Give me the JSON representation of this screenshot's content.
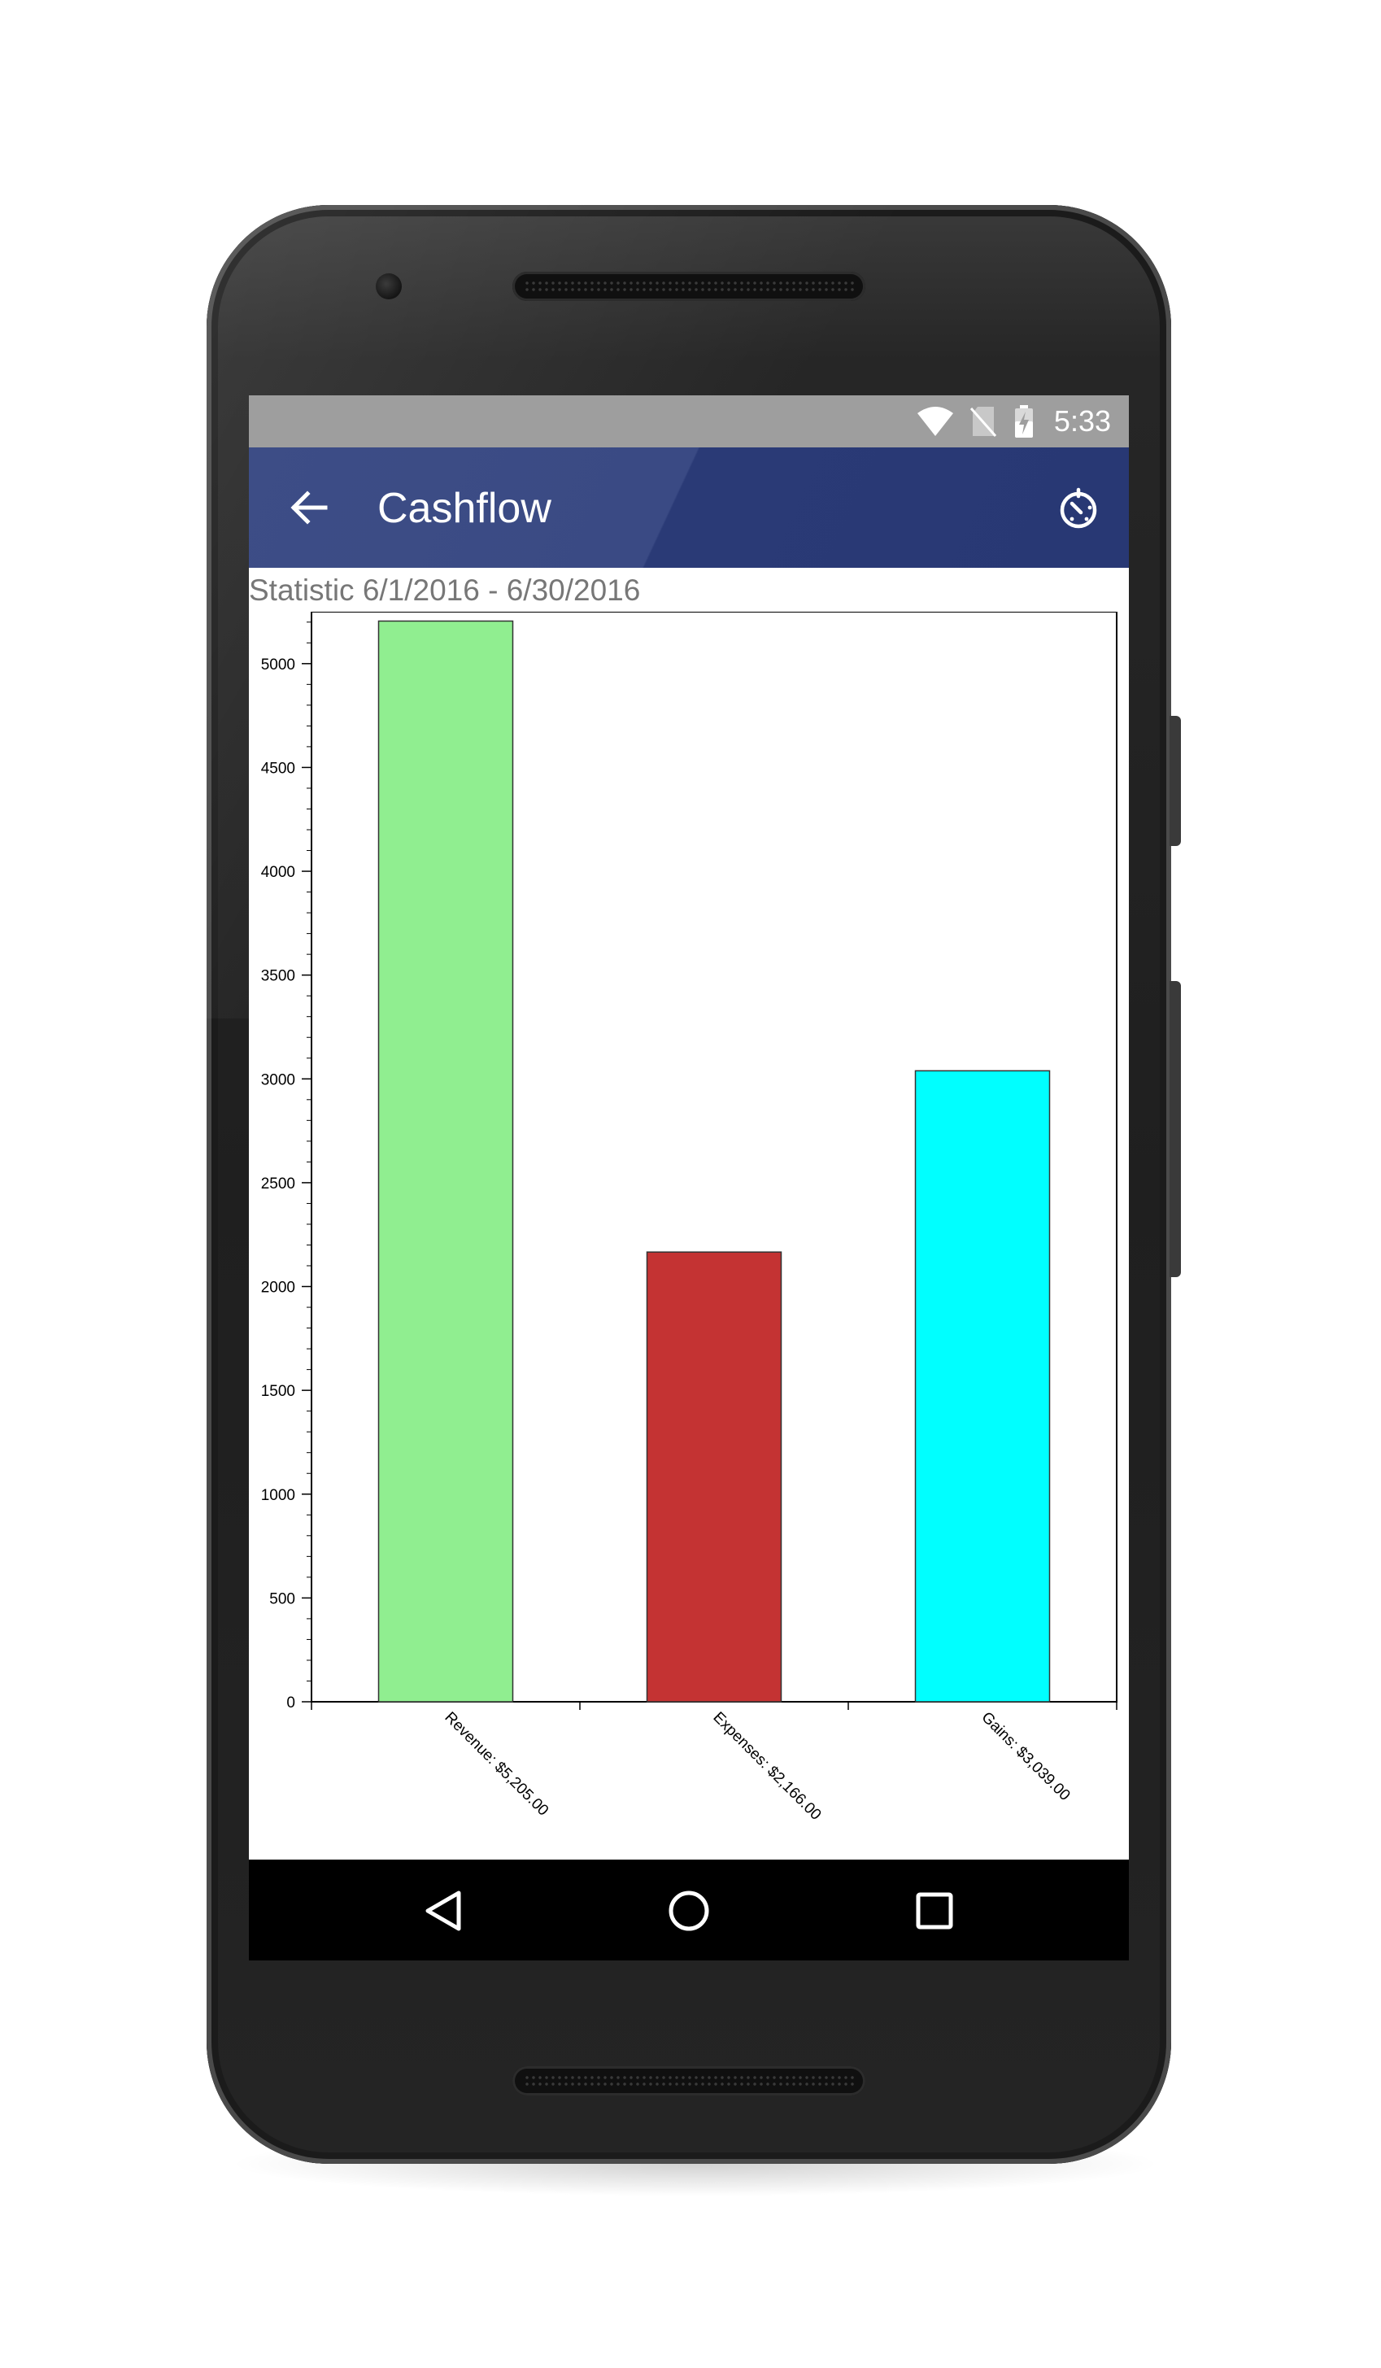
{
  "status_bar": {
    "time": "5:33",
    "icons": [
      "wifi-icon",
      "no-sim-icon",
      "battery-charging-icon"
    ]
  },
  "app_bar": {
    "title": "Cashflow",
    "back_icon": "arrow-back-icon",
    "action_icon": "timer-icon",
    "color": "#3a4a84"
  },
  "statistic_heading": "Statistic 6/1/2016 - 6/30/2016",
  "chart_data": {
    "type": "bar",
    "categories": [
      "Revenue: $5,205.00",
      "Expenses: $2,166.00",
      "Gains: $3,039.00"
    ],
    "values": [
      5205,
      2166,
      3039
    ],
    "colors": [
      "#90ee90",
      "#c43333",
      "#00ffff"
    ],
    "ylim": [
      0,
      5250
    ],
    "yticks": [
      "0",
      "500",
      "1000",
      "1500",
      "2000",
      "2500",
      "3000",
      "3500",
      "4000",
      "4500",
      "5000"
    ],
    "ytick_values": [
      0,
      500,
      1000,
      1500,
      2000,
      2500,
      3000,
      3500,
      4000,
      4500,
      5000
    ],
    "title": "",
    "xlabel": "",
    "ylabel": "",
    "grid": false,
    "legend": "none"
  },
  "nav_bar": {
    "icons": [
      "back-triangle-icon",
      "home-circle-icon",
      "recents-square-icon"
    ]
  }
}
